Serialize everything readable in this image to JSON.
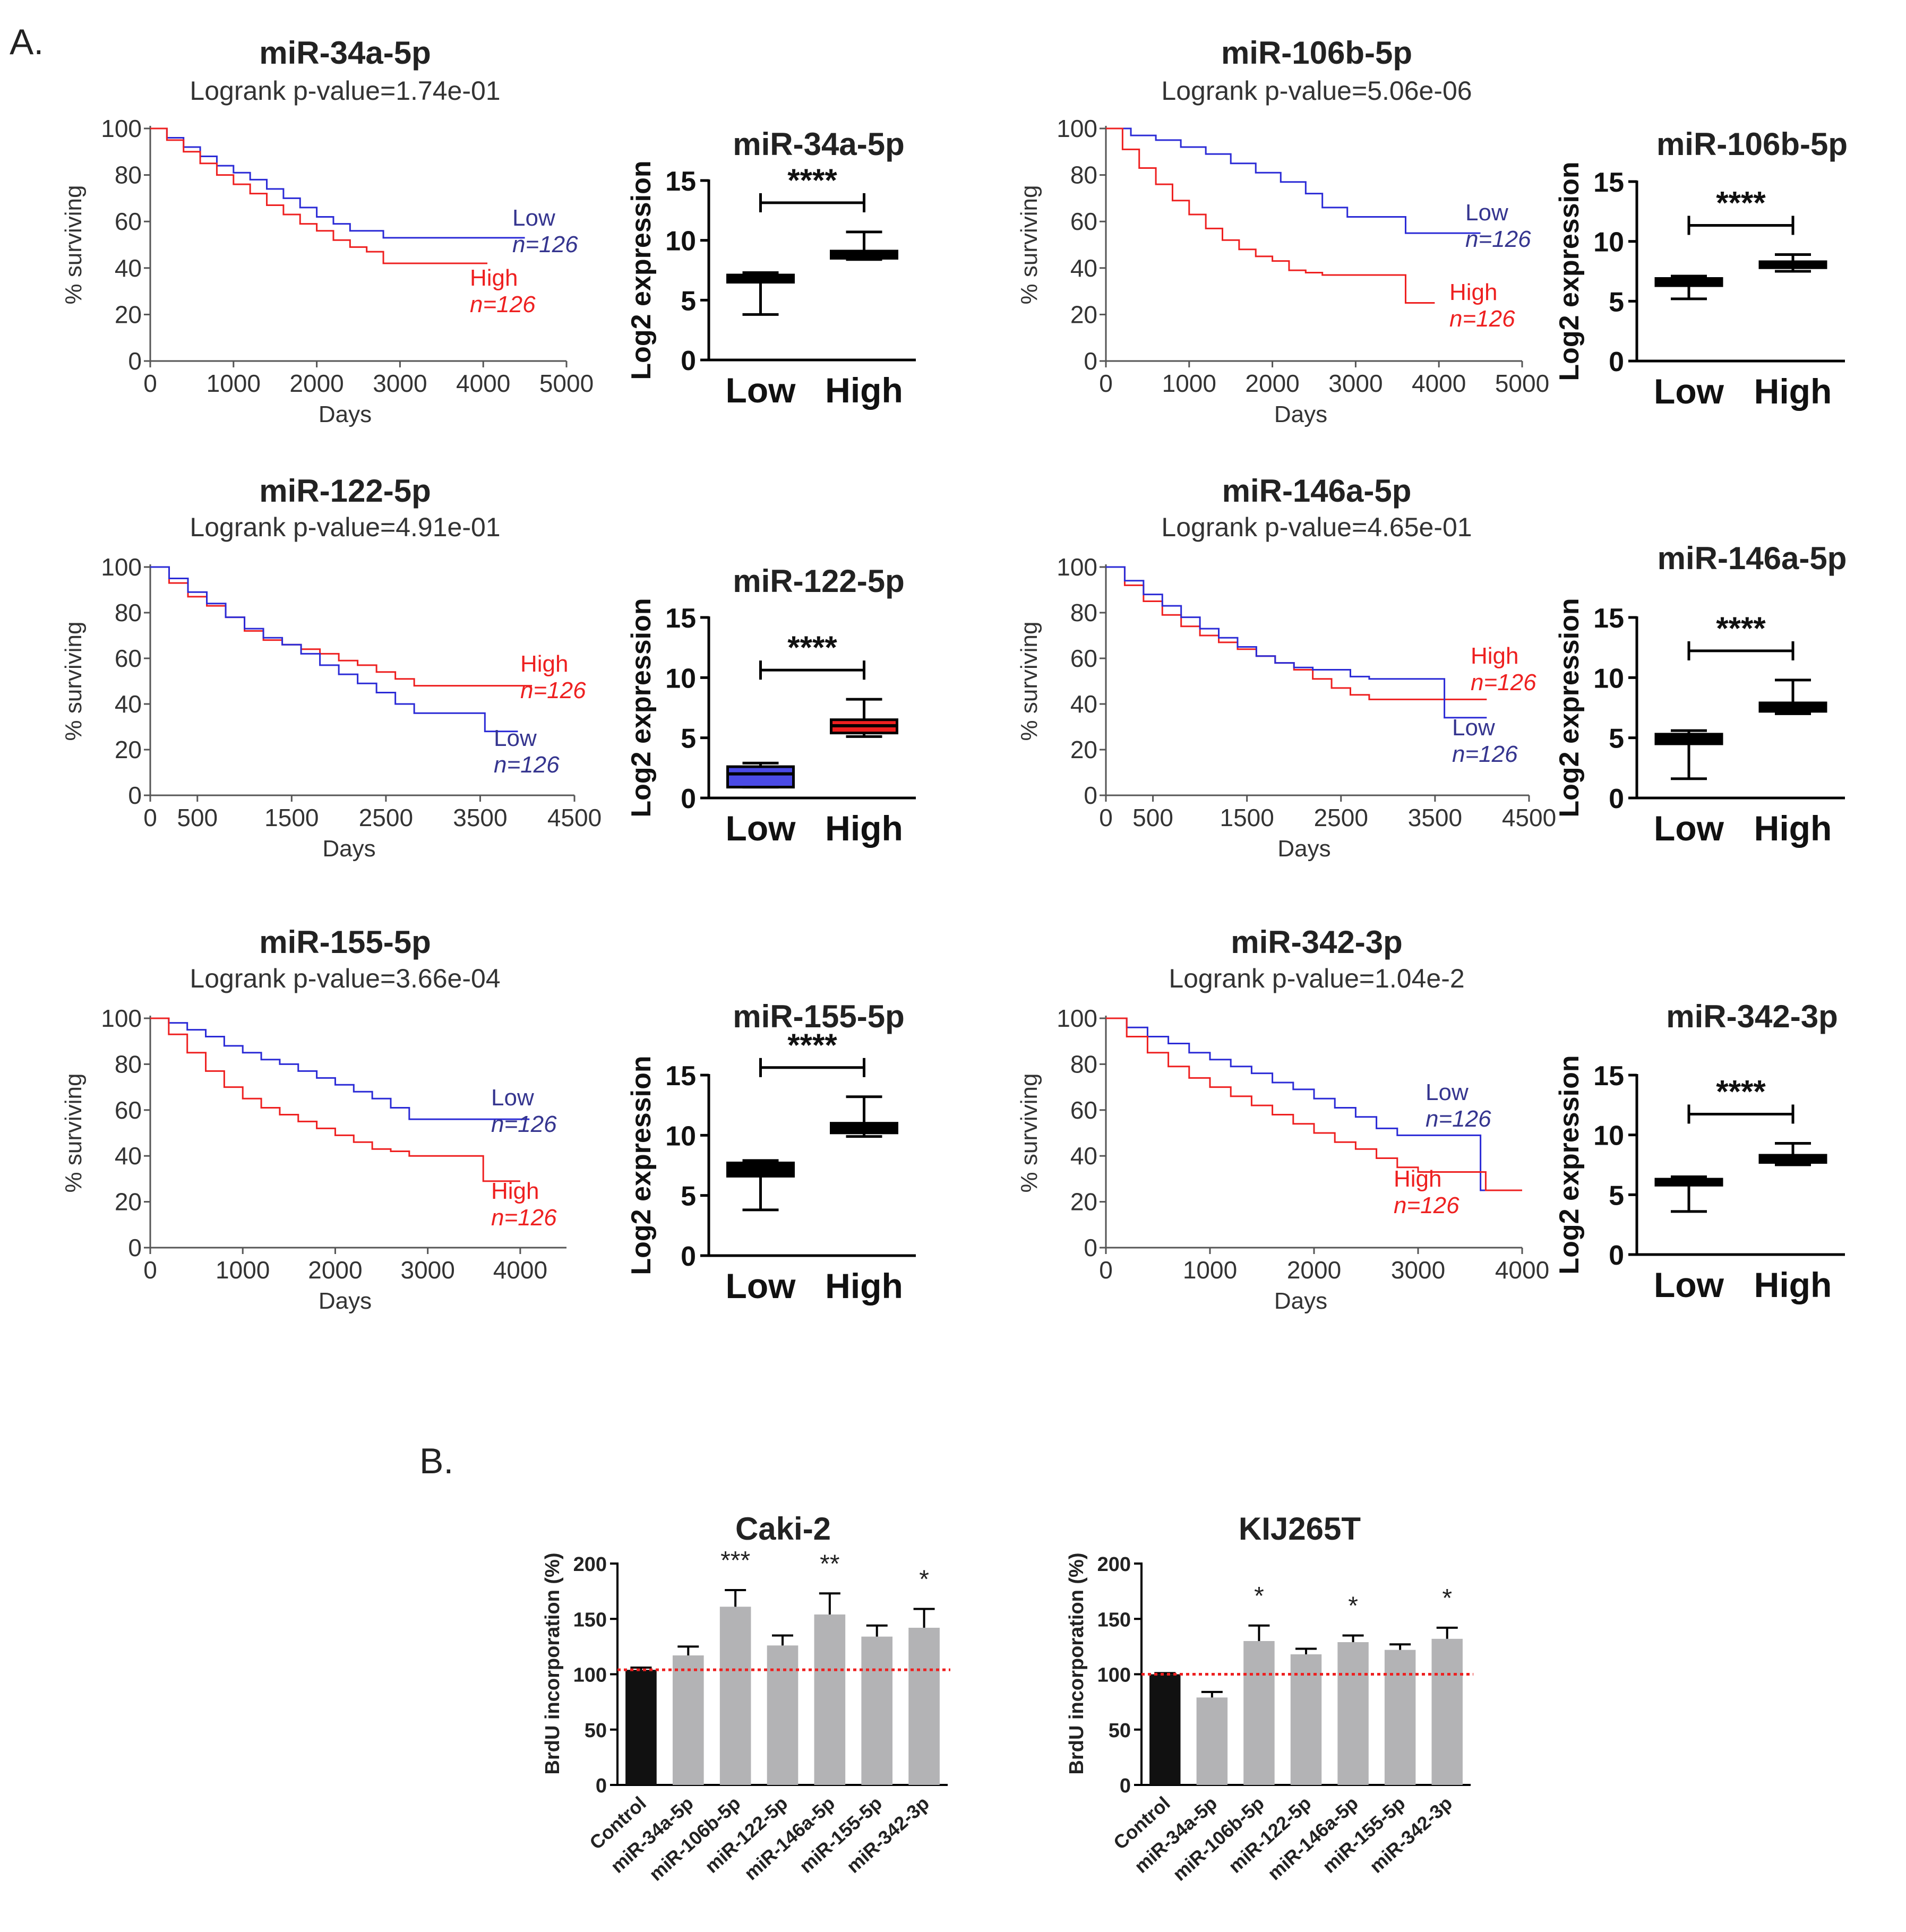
{
  "panel_a_label": "A.",
  "panel_b_label": "B.",
  "colors": {
    "low": "#2b2bd6",
    "high": "#ee2020",
    "low_text": "#35358f",
    "bar_gray": "#b3b3b5",
    "control_bar": "#111111",
    "ref_line": "#ee2020",
    "axis": "#000000",
    "km_axis": "#555555"
  },
  "chart_data": [
    {
      "id": "km-mir34a",
      "type": "line",
      "title": "miR-34a-5p",
      "subtitle": "Logrank p-value=1.74e-01",
      "xlabel": "Days",
      "ylabel": "% surviving",
      "xlim": [
        0,
        5000
      ],
      "ylim": [
        0,
        100
      ],
      "xticks": [
        "0",
        "1000",
        "2000",
        "3000",
        "4000",
        "5000"
      ],
      "yticks": [
        "0",
        "20",
        "40",
        "60",
        "80",
        "100"
      ],
      "series": [
        {
          "name": "Low",
          "n_label": "n=126",
          "color": "#2b2bd6",
          "x": [
            0,
            200,
            400,
            600,
            800,
            1000,
            1200,
            1400,
            1600,
            1800,
            2000,
            2200,
            2400,
            2600,
            2800,
            3000,
            3500,
            4000,
            4500
          ],
          "y": [
            100,
            96,
            92,
            88,
            84,
            81,
            78,
            74,
            70,
            66,
            62,
            59,
            56,
            56,
            53,
            53,
            53,
            53,
            53
          ]
        },
        {
          "name": "High",
          "n_label": "n=126",
          "color": "#ee2020",
          "x": [
            0,
            200,
            400,
            600,
            800,
            1000,
            1200,
            1400,
            1600,
            1800,
            2000,
            2200,
            2400,
            2600,
            2800,
            3000,
            3500,
            4050
          ],
          "y": [
            100,
            95,
            90,
            85,
            80,
            76,
            72,
            67,
            63,
            59,
            56,
            52,
            49,
            47,
            42,
            42,
            42,
            42
          ]
        }
      ]
    },
    {
      "id": "box-mir34a",
      "type": "box",
      "title": "miR-34a-5p",
      "ylabel": "Log2 expression",
      "ylim": [
        0,
        15
      ],
      "yticks": [
        "0",
        "5",
        "10",
        "15"
      ],
      "significance": "****",
      "groups": [
        {
          "name": "Low",
          "whisker_low": 3.8,
          "q1": 6.5,
          "median": 6.8,
          "q3": 7.1,
          "whisker_high": 7.3,
          "fill": "#000000"
        },
        {
          "name": "High",
          "whisker_low": 8.4,
          "q1": 8.5,
          "median": 8.8,
          "q3": 9.1,
          "whisker_high": 10.7,
          "fill": "#000000"
        }
      ]
    },
    {
      "id": "km-mir106b",
      "type": "line",
      "title": "miR-106b-5p",
      "subtitle": "Logrank p-value=5.06e-06",
      "xlabel": "Days",
      "ylabel": "% surviving",
      "xlim": [
        0,
        5000
      ],
      "ylim": [
        0,
        100
      ],
      "xticks": [
        "0",
        "1000",
        "2000",
        "3000",
        "4000",
        "5000"
      ],
      "yticks": [
        "0",
        "20",
        "40",
        "60",
        "80",
        "100"
      ],
      "series": [
        {
          "name": "Low",
          "n_label": "n=126",
          "color": "#2b2bd6",
          "x": [
            0,
            300,
            600,
            900,
            1200,
            1500,
            1800,
            2100,
            2400,
            2600,
            2900,
            3200,
            3600,
            4000,
            4500
          ],
          "y": [
            100,
            97,
            95,
            92,
            89,
            85,
            81,
            77,
            72,
            66,
            62,
            62,
            55,
            55,
            55
          ]
        },
        {
          "name": "High",
          "n_label": "n=126",
          "color": "#ee2020",
          "x": [
            0,
            200,
            400,
            600,
            800,
            1000,
            1200,
            1400,
            1600,
            1800,
            2000,
            2200,
            2400,
            2600,
            2900,
            3200,
            3600,
            3950
          ],
          "y": [
            100,
            91,
            83,
            76,
            69,
            63,
            57,
            52,
            48,
            45,
            43,
            39,
            38,
            37,
            37,
            37,
            25,
            25
          ]
        }
      ]
    },
    {
      "id": "box-mir106b",
      "type": "box",
      "title": "miR-106b-5p",
      "ylabel": "Log2 expression",
      "ylim": [
        0,
        15
      ],
      "yticks": [
        "0",
        "5",
        "10",
        "15"
      ],
      "significance": "****",
      "groups": [
        {
          "name": "Low",
          "whisker_low": 5.2,
          "q1": 6.3,
          "median": 6.6,
          "q3": 6.9,
          "whisker_high": 7.1,
          "fill": "#000000"
        },
        {
          "name": "High",
          "whisker_low": 7.5,
          "q1": 7.8,
          "median": 8.0,
          "q3": 8.3,
          "whisker_high": 8.9,
          "fill": "#000000"
        }
      ]
    },
    {
      "id": "km-mir122",
      "type": "line",
      "title": "miR-122-5p",
      "subtitle": "Logrank p-value=4.91e-01",
      "xlabel": "Days",
      "ylabel": "% surviving",
      "xlim": [
        0,
        4500
      ],
      "ylim": [
        0,
        100
      ],
      "xticks": [
        "0",
        "500",
        "1500",
        "2500",
        "3500",
        "4500"
      ],
      "ytick_values": [
        0,
        20,
        40,
        60,
        80,
        100
      ],
      "xtick_values": [
        0,
        500,
        1500,
        2500,
        3500,
        4500
      ],
      "yticks": [
        "0",
        "20",
        "40",
        "60",
        "80",
        "100"
      ],
      "series": [
        {
          "name": "High",
          "n_label": "n=126",
          "color": "#ee2020",
          "x": [
            0,
            200,
            400,
            600,
            800,
            1000,
            1200,
            1400,
            1600,
            1800,
            2000,
            2200,
            2400,
            2600,
            2800,
            3200,
            3600,
            4050
          ],
          "y": [
            100,
            93,
            87,
            83,
            78,
            72,
            68,
            66,
            64,
            62,
            59,
            57,
            54,
            51,
            48,
            48,
            48,
            48
          ]
        },
        {
          "name": "Low",
          "n_label": "n=126",
          "color": "#2b2bd6",
          "x": [
            0,
            200,
            400,
            600,
            800,
            1000,
            1200,
            1400,
            1600,
            1800,
            2000,
            2200,
            2400,
            2600,
            2800,
            3200,
            3550,
            3900
          ],
          "y": [
            100,
            95,
            89,
            84,
            78,
            73,
            69,
            66,
            62,
            57,
            53,
            49,
            45,
            40,
            36,
            36,
            28,
            28
          ]
        }
      ]
    },
    {
      "id": "box-mir122",
      "type": "box",
      "title": "miR-122-5p",
      "ylabel": "Log2 expression",
      "ylim": [
        0,
        15
      ],
      "yticks": [
        "0",
        "5",
        "10",
        "15"
      ],
      "significance": "****",
      "groups": [
        {
          "name": "Low",
          "whisker_low": 0.9,
          "q1": 0.9,
          "median": 2.0,
          "q3": 2.6,
          "whisker_high": 2.9,
          "fill": "#4a4ae6"
        },
        {
          "name": "High",
          "whisker_low": 5.1,
          "q1": 5.4,
          "median": 6.0,
          "q3": 6.5,
          "whisker_high": 8.2,
          "fill": "#ee2020"
        }
      ]
    },
    {
      "id": "km-mir146a",
      "type": "line",
      "title": "miR-146a-5p",
      "subtitle": "Logrank p-value=4.65e-01",
      "xlabel": "Days",
      "ylabel": "% surviving",
      "xlim": [
        0,
        4500
      ],
      "ylim": [
        0,
        100
      ],
      "xticks": [
        "0",
        "500",
        "1500",
        "2500",
        "3500",
        "4500"
      ],
      "ytick_values": [
        0,
        20,
        40,
        60,
        80,
        100
      ],
      "xtick_values": [
        0,
        500,
        1500,
        2500,
        3500,
        4500
      ],
      "yticks": [
        "0",
        "20",
        "40",
        "60",
        "80",
        "100"
      ],
      "series": [
        {
          "name": "High",
          "n_label": "n=126",
          "color": "#ee2020",
          "x": [
            0,
            200,
            400,
            600,
            800,
            1000,
            1200,
            1400,
            1600,
            1800,
            2000,
            2200,
            2400,
            2600,
            2800,
            3200,
            3600,
            4050
          ],
          "y": [
            100,
            92,
            85,
            79,
            74,
            70,
            67,
            64,
            61,
            58,
            55,
            51,
            47,
            44,
            42,
            42,
            42,
            42
          ]
        },
        {
          "name": "Low",
          "n_label": "n=126",
          "color": "#2b2bd6",
          "x": [
            0,
            200,
            400,
            600,
            800,
            1000,
            1200,
            1400,
            1600,
            1800,
            2000,
            2200,
            2400,
            2600,
            2800,
            3200,
            3600,
            4050
          ],
          "y": [
            100,
            94,
            88,
            83,
            78,
            73,
            69,
            65,
            61,
            58,
            56,
            55,
            55,
            52,
            51,
            51,
            34,
            34
          ]
        }
      ]
    },
    {
      "id": "box-mir146a",
      "type": "box",
      "title": "miR-146a-5p",
      "ylabel": "Log2 expression",
      "ylim": [
        0,
        15
      ],
      "yticks": [
        "0",
        "5",
        "10",
        "15"
      ],
      "significance": "****",
      "groups": [
        {
          "name": "Low",
          "whisker_low": 1.6,
          "q1": 4.5,
          "median": 4.9,
          "q3": 5.3,
          "whisker_high": 5.6,
          "fill": "#000000"
        },
        {
          "name": "High",
          "whisker_low": 7.0,
          "q1": 7.2,
          "median": 7.6,
          "q3": 7.9,
          "whisker_high": 9.8,
          "fill": "#000000"
        }
      ]
    },
    {
      "id": "km-mir155",
      "type": "line",
      "title": "miR-155-5p",
      "subtitle": "Logrank p-value=3.66e-04",
      "xlabel": "Days",
      "ylabel": "% surviving",
      "xlim": [
        0,
        4500
      ],
      "ylim": [
        0,
        100
      ],
      "xticks": [
        "0",
        "1000",
        "2000",
        "3000",
        "4000"
      ],
      "xtick_values": [
        0,
        1000,
        2000,
        3000,
        4000
      ],
      "yticks": [
        "0",
        "20",
        "40",
        "60",
        "80",
        "100"
      ],
      "series": [
        {
          "name": "Low",
          "n_label": "n=126",
          "color": "#2b2bd6",
          "x": [
            0,
            200,
            400,
            600,
            800,
            1000,
            1200,
            1400,
            1600,
            1800,
            2000,
            2200,
            2400,
            2600,
            2800,
            3200,
            3600,
            4100
          ],
          "y": [
            100,
            98,
            95,
            92,
            88,
            85,
            82,
            80,
            77,
            74,
            71,
            68,
            65,
            61,
            56,
            56,
            56,
            56
          ]
        },
        {
          "name": "High",
          "n_label": "n=126",
          "color": "#ee2020",
          "x": [
            0,
            200,
            400,
            600,
            800,
            1000,
            1200,
            1400,
            1600,
            1800,
            2000,
            2200,
            2400,
            2600,
            2800,
            3200,
            3600,
            4000
          ],
          "y": [
            100,
            93,
            85,
            77,
            70,
            65,
            61,
            58,
            55,
            52,
            49,
            46,
            43,
            42,
            40,
            40,
            29,
            29
          ]
        }
      ]
    },
    {
      "id": "box-mir155",
      "type": "box",
      "title": "miR-155-5p",
      "ylabel": "Log2 expression",
      "ylim": [
        0,
        15
      ],
      "yticks": [
        "0",
        "5",
        "10",
        "15"
      ],
      "significance": "****",
      "groups": [
        {
          "name": "Low",
          "whisker_low": 3.8,
          "q1": 6.6,
          "median": 7.1,
          "q3": 7.7,
          "whisker_high": 7.9,
          "fill": "#000000"
        },
        {
          "name": "High",
          "whisker_low": 9.9,
          "q1": 10.2,
          "median": 10.6,
          "q3": 11.0,
          "whisker_high": 13.2,
          "fill": "#000000"
        }
      ]
    },
    {
      "id": "km-mir342",
      "type": "line",
      "title": "miR-342-3p",
      "subtitle": "Logrank p-value=1.04e-2",
      "xlabel": "Days",
      "ylabel": "% surviving",
      "xlim": [
        0,
        4000
      ],
      "ylim": [
        0,
        100
      ],
      "xticks": [
        "0",
        "1000",
        "2000",
        "3000",
        "4000"
      ],
      "yticks": [
        "0",
        "20",
        "40",
        "60",
        "80",
        "100"
      ],
      "series": [
        {
          "name": "Low",
          "n_label": "n=126",
          "color": "#2b2bd6",
          "x": [
            0,
            200,
            400,
            600,
            800,
            1000,
            1200,
            1400,
            1600,
            1800,
            2000,
            2200,
            2400,
            2600,
            2800,
            3000,
            3550,
            3600,
            4000
          ],
          "y": [
            100,
            96,
            92,
            89,
            85,
            82,
            79,
            76,
            72,
            69,
            65,
            61,
            57,
            52,
            49,
            49,
            49,
            25,
            25
          ]
        },
        {
          "name": "High",
          "n_label": "n=126",
          "color": "#ee2020",
          "x": [
            0,
            200,
            400,
            600,
            800,
            1000,
            1200,
            1400,
            1600,
            1800,
            2000,
            2200,
            2400,
            2600,
            2800,
            3000,
            3600,
            3650,
            4000
          ],
          "y": [
            100,
            92,
            85,
            79,
            74,
            70,
            66,
            62,
            58,
            54,
            50,
            46,
            43,
            39,
            35,
            33,
            33,
            25,
            25
          ]
        }
      ]
    },
    {
      "id": "box-mir342",
      "type": "box",
      "title": "miR-342-3p",
      "ylabel": "Log2 expression",
      "ylim": [
        0,
        15
      ],
      "yticks": [
        "0",
        "5",
        "10",
        "15"
      ],
      "significance": "****",
      "groups": [
        {
          "name": "Low",
          "whisker_low": 3.6,
          "q1": 5.8,
          "median": 6.1,
          "q3": 6.3,
          "whisker_high": 6.5,
          "fill": "#000000"
        },
        {
          "name": "High",
          "whisker_low": 7.5,
          "q1": 7.7,
          "median": 8.0,
          "q3": 8.3,
          "whisker_high": 9.3,
          "fill": "#000000"
        }
      ]
    },
    {
      "id": "bar-caki2",
      "type": "bar",
      "title": "Caki-2",
      "ylabel": "BrdU incorporation (%)",
      "ylim": [
        0,
        200
      ],
      "yticks": [
        "0",
        "50",
        "100",
        "150",
        "200"
      ],
      "reference_line": 104,
      "categories": [
        "Control",
        "miR-34a-5p",
        "miR-106b-5p",
        "miR-122-5p",
        "miR-146a-5p",
        "miR-155-5p",
        "miR-342-3p"
      ],
      "values": [
        104,
        117,
        161,
        126,
        154,
        134,
        142
      ],
      "errors": [
        2,
        8,
        15,
        9,
        19,
        10,
        17
      ],
      "significance": [
        "",
        "",
        "***",
        "",
        "**",
        "",
        "*"
      ]
    },
    {
      "id": "bar-kij265t",
      "type": "bar",
      "title": "KIJ265T",
      "ylabel": "BrdU incorporation (%)",
      "ylim": [
        0,
        200
      ],
      "yticks": [
        "0",
        "50",
        "100",
        "150",
        "200"
      ],
      "reference_line": 100,
      "categories": [
        "Control",
        "miR-34a-5p",
        "miR-106b-5p",
        "miR-122-5p",
        "miR-146a-5p",
        "miR-155-5p",
        "miR-342-3p"
      ],
      "values": [
        100,
        79,
        130,
        118,
        129,
        122,
        132
      ],
      "errors": [
        1,
        5,
        14,
        5,
        6,
        5,
        10
      ],
      "significance": [
        "",
        "",
        "*",
        "",
        "*",
        "",
        "*"
      ]
    }
  ]
}
